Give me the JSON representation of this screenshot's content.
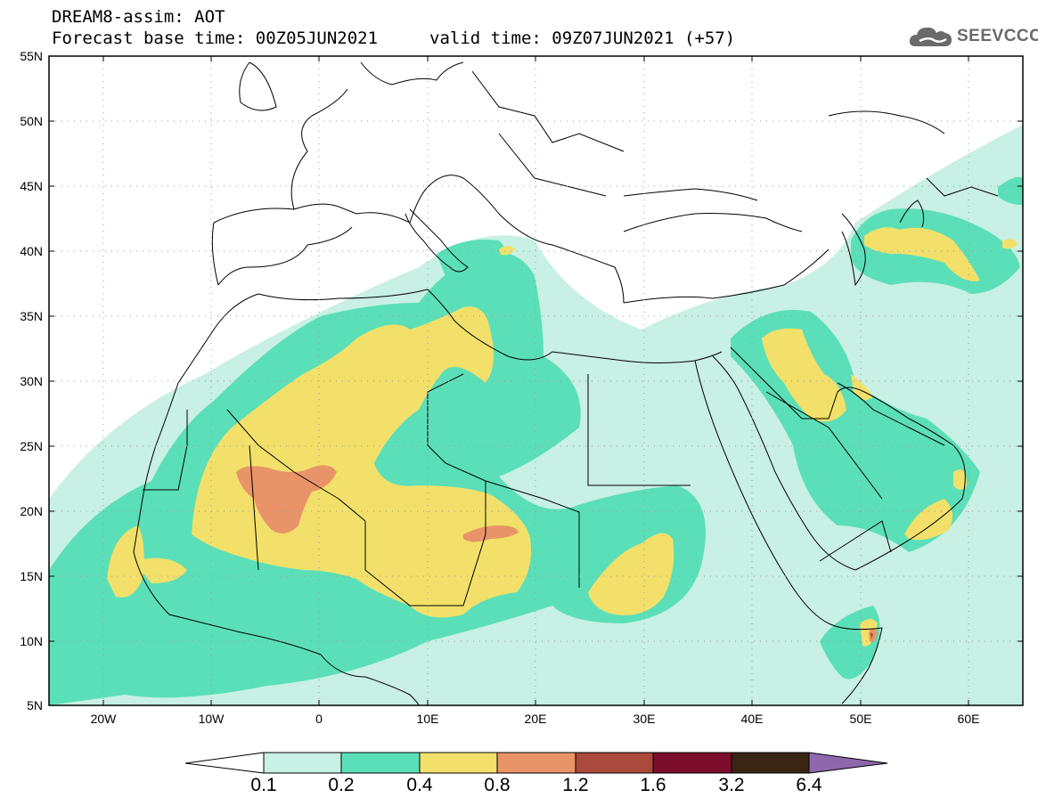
{
  "header": {
    "title": "DREAM8-assim: AOT",
    "base_time": "Forecast base time: 00Z05JUN2021",
    "valid_time": "valid time: 09Z07JUN2021 (+57)"
  },
  "logo": {
    "text": "SEEVCCC"
  },
  "axes": {
    "lat_labels": [
      "55N",
      "50N",
      "45N",
      "40N",
      "35N",
      "30N",
      "25N",
      "20N",
      "15N",
      "10N",
      "5N"
    ],
    "lon_labels": [
      "20W",
      "10W",
      "0",
      "10E",
      "20E",
      "30E",
      "40E",
      "50E",
      "60E"
    ]
  },
  "colorbar": {
    "labels": [
      "0.1",
      "0.2",
      "0.4",
      "0.8",
      "1.2",
      "1.6",
      "3.2",
      "6.4"
    ],
    "colors": [
      "#ffffff",
      "#c8f0e4",
      "#5bdfb8",
      "#f3e06a",
      "#e89468",
      "#ab4a3c",
      "#7d0d2c",
      "#3a2414",
      "#8e68ad"
    ]
  },
  "palette": {
    "c01": "#c8f0e4",
    "c02": "#5bdfb8",
    "c04": "#f3e06a",
    "c08": "#e89468",
    "c12": "#ab4a3c"
  }
}
